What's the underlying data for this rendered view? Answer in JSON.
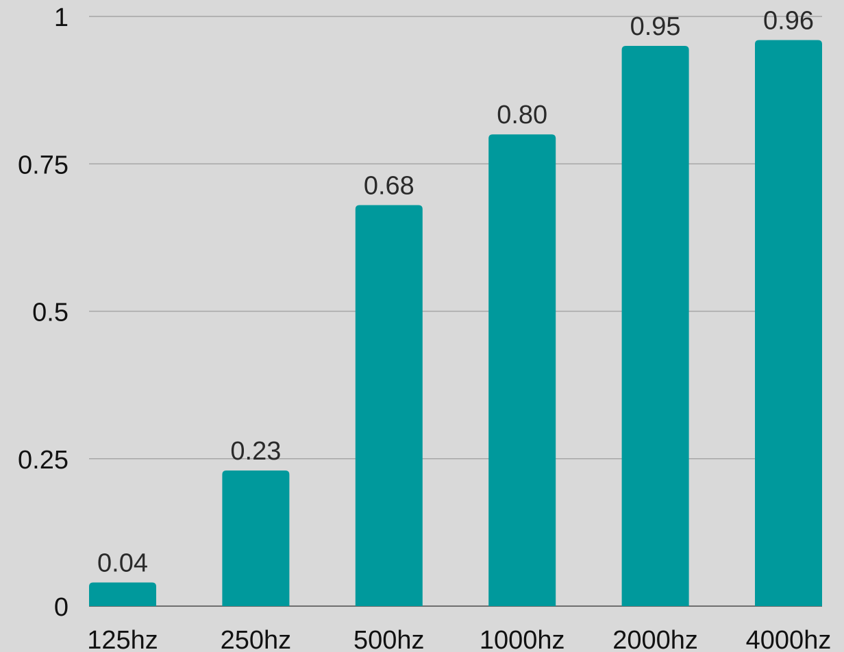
{
  "chart_data": {
    "type": "bar",
    "categories": [
      "125hz",
      "250hz",
      "500hz",
      "1000hz",
      "2000hz",
      "4000hz"
    ],
    "values": [
      0.04,
      0.23,
      0.68,
      0.8,
      0.95,
      0.96
    ],
    "data_labels": [
      "0.04",
      "0.23",
      "0.68",
      "0.80",
      "0.95",
      "0.96"
    ],
    "y_ticks": [
      0,
      0.25,
      0.5,
      0.75,
      1
    ],
    "y_tick_labels": [
      "0",
      "0.25",
      "0.5",
      "0.75",
      "1"
    ],
    "ylim": [
      0,
      1
    ],
    "grid": true,
    "legend": "none",
    "title": "",
    "xlabel": "",
    "ylabel": ""
  },
  "colors": {
    "background": "#d9d9d9",
    "bar": "#00999c",
    "gridline": "#a6a6a6",
    "baseline": "#6e6e6e"
  }
}
